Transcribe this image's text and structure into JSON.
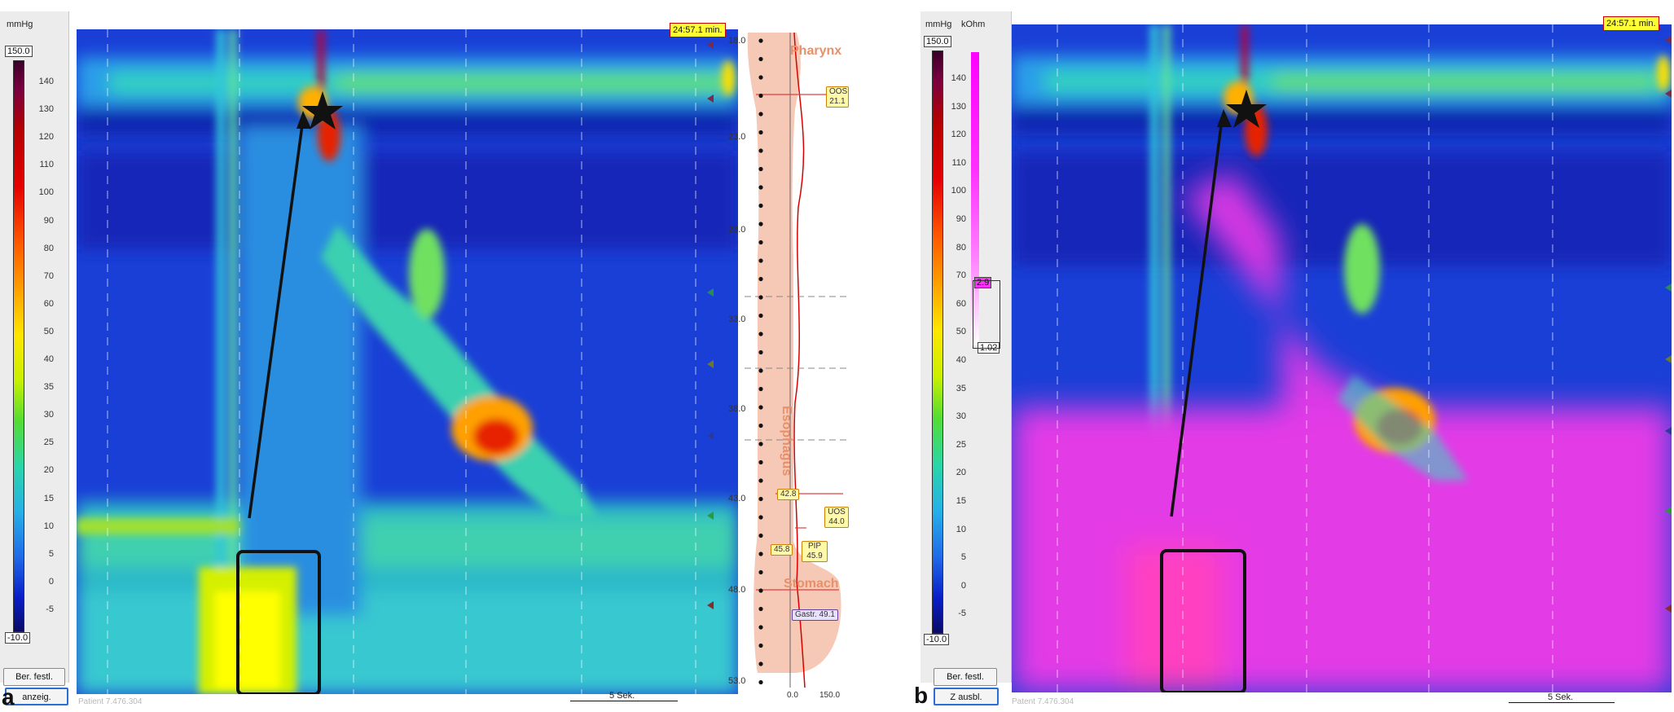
{
  "panel_a": {
    "letter": "a",
    "units_pressure": "mmHg",
    "scale_max": "150.0",
    "scale_min": "-10.0",
    "ticks": [
      "140",
      "130",
      "120",
      "110",
      "100",
      "90",
      "80",
      "70",
      "60",
      "50",
      "40",
      "35",
      "30",
      "25",
      "20",
      "15",
      "10",
      "5",
      "0",
      "-5"
    ],
    "btn_set_range": "Ber. festl.",
    "btn_display": "anzeig.",
    "patient": "Patient 7.476.304",
    "time_marker": "24:57.1 min.",
    "time_scale": "5 Sek.",
    "depth_labels": [
      "18.0",
      "23.0",
      "28.0",
      "33.0",
      "38.0",
      "43.0",
      "48.0",
      "53.0"
    ],
    "anatomy": {
      "pharynx": "Pharynx",
      "esophagus": "Esophagus",
      "stomach": "Stomach",
      "oos_label": "OOS",
      "oos_value": "21.1",
      "uos_label": "UOS",
      "uos_value": "44.0",
      "pip_label": "PIP",
      "pip_value": "45.9",
      "gastr_label": "Gastr. 49.1",
      "marker_1": "42.8",
      "marker_2": "45.8",
      "axis_min": "0.0",
      "axis_max": "150.0"
    }
  },
  "panel_b": {
    "letter": "b",
    "units_pressure": "mmHg",
    "units_impedance": "kOhm",
    "scale_max": "150.0",
    "scale_min": "-10.0",
    "ticks": [
      "140",
      "130",
      "120",
      "110",
      "100",
      "90",
      "80",
      "70",
      "60",
      "50",
      "40",
      "35",
      "30",
      "25",
      "20",
      "15",
      "10",
      "5",
      "0",
      "-5"
    ],
    "imp_upper": "2.9",
    "imp_lower": "1.02",
    "btn_set_range": "Ber. festl.",
    "btn_display": "Z ausbl.",
    "patient": "Patent 7.476.304",
    "time_marker": "24:57.1 min.",
    "time_scale": "5 Sek."
  },
  "colors": {
    "background_blue": "#1a3fd6",
    "impedance_magenta": "#e33ae6",
    "anatomy_fill": "#f6c8b6"
  }
}
